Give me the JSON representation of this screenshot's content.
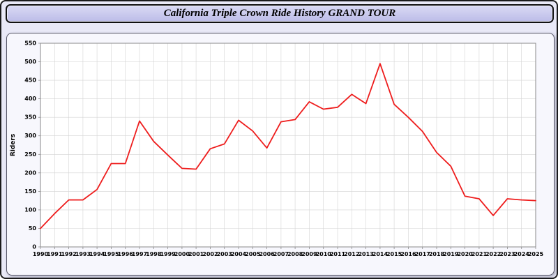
{
  "title": "California Triple Crown Ride History GRAND TOUR",
  "colors": {
    "page_bg": "#e9e9f7",
    "titlebar_bg": "#c8c8ee",
    "panel_bg": "#f7f7fd",
    "plot_bg": "#ffffff",
    "grid": "#d4d4d4",
    "axis_frame": "#8a8a8a",
    "line": "#ee1c1c"
  },
  "chart_data": {
    "type": "line",
    "title": "California Triple Crown Ride History GRAND TOUR",
    "xlabel": "",
    "ylabel": "Riders",
    "ylim": [
      0,
      550
    ],
    "ytick_step": 50,
    "grid": true,
    "legend": "none",
    "x": [
      1990,
      1991,
      1992,
      1993,
      1994,
      1995,
      1996,
      1997,
      1998,
      1999,
      2000,
      2001,
      2002,
      2003,
      2004,
      2005,
      2006,
      2007,
      2008,
      2009,
      2010,
      2011,
      2012,
      2013,
      2014,
      2015,
      2016,
      2017,
      2018,
      2019,
      2020,
      2021,
      2022,
      2023,
      2024,
      2025
    ],
    "series": [
      {
        "name": "Riders",
        "color": "#ee1c1c",
        "values": [
          50,
          90,
          127,
          127,
          155,
          225,
          225,
          340,
          285,
          248,
          212,
          210,
          265,
          278,
          342,
          313,
          267,
          338,
          344,
          392,
          372,
          377,
          412,
          387,
          495,
          385,
          350,
          312,
          255,
          218,
          137,
          130,
          85,
          130,
          127,
          125
        ]
      }
    ]
  }
}
